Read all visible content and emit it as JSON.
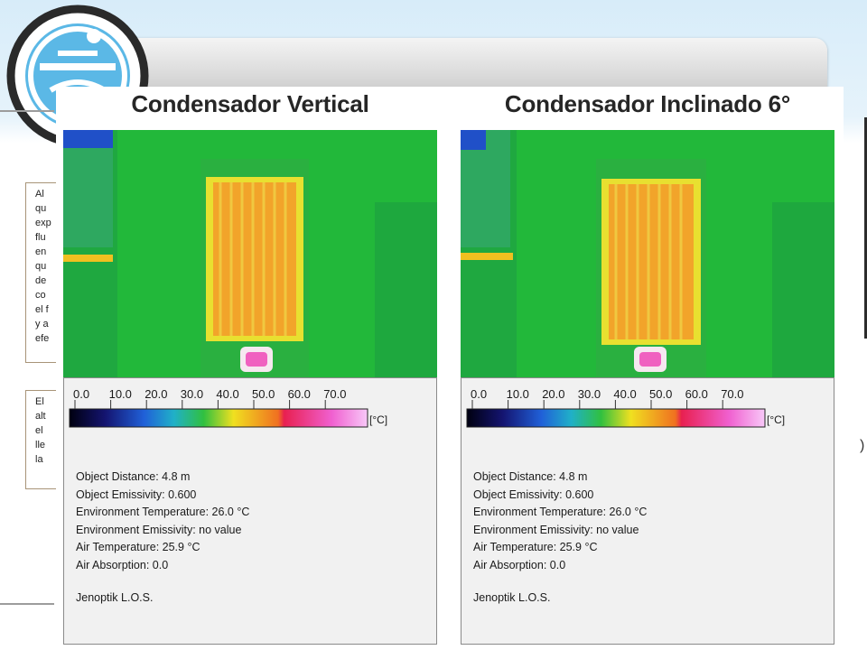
{
  "background_doc": {
    "box1_lines": [
      "Al",
      "qu",
      "exp",
      "flu",
      "en",
      "qu",
      "de",
      "co",
      "el f",
      "y a",
      "efe"
    ],
    "box2_lines": [
      "El",
      "alt",
      "el",
      "lle",
      "la"
    ]
  },
  "panels": [
    {
      "title": "Condensador Vertical",
      "scale_ticks": [
        "0.0",
        "10.0",
        "20.0",
        "30.0",
        "40.0",
        "50.0",
        "60.0",
        "70.0"
      ],
      "unit": "[°C]",
      "info": [
        "Object Distance: 4.8 m",
        "Object Emissivity: 0.600",
        "Environment Temperature: 26.0 °C",
        "Environment Emissivity: no value",
        "Air Temperature: 25.9 °C",
        "Air Absorption: 0.0"
      ],
      "brand": "Jenoptik L.O.S."
    },
    {
      "title": "Condensador Inclinado 6°",
      "scale_ticks": [
        "0.0",
        "10.0",
        "20.0",
        "30.0",
        "40.0",
        "50.0",
        "60.0",
        "70.0"
      ],
      "unit": "[°C]",
      "info": [
        "Object Distance: 4.8 m",
        "Object Emissivity: 0.600",
        "Environment Temperature: 26.0 °C",
        "Environment Emissivity: no value",
        "Air Temperature: 25.9 °C",
        "Air Absorption: 0.0"
      ],
      "brand": "Jenoptik L.O.S."
    }
  ],
  "colors": {
    "thermal_background": "#22b83a",
    "condenser_core": "#f0a020",
    "condenser_edge": "#f0e040",
    "scale": [
      "#000010",
      "#141470",
      "#2060d8",
      "#20b0c8",
      "#30c040",
      "#f0e020",
      "#f07020",
      "#e82050",
      "#f060d0",
      "#f8c8f8"
    ]
  }
}
